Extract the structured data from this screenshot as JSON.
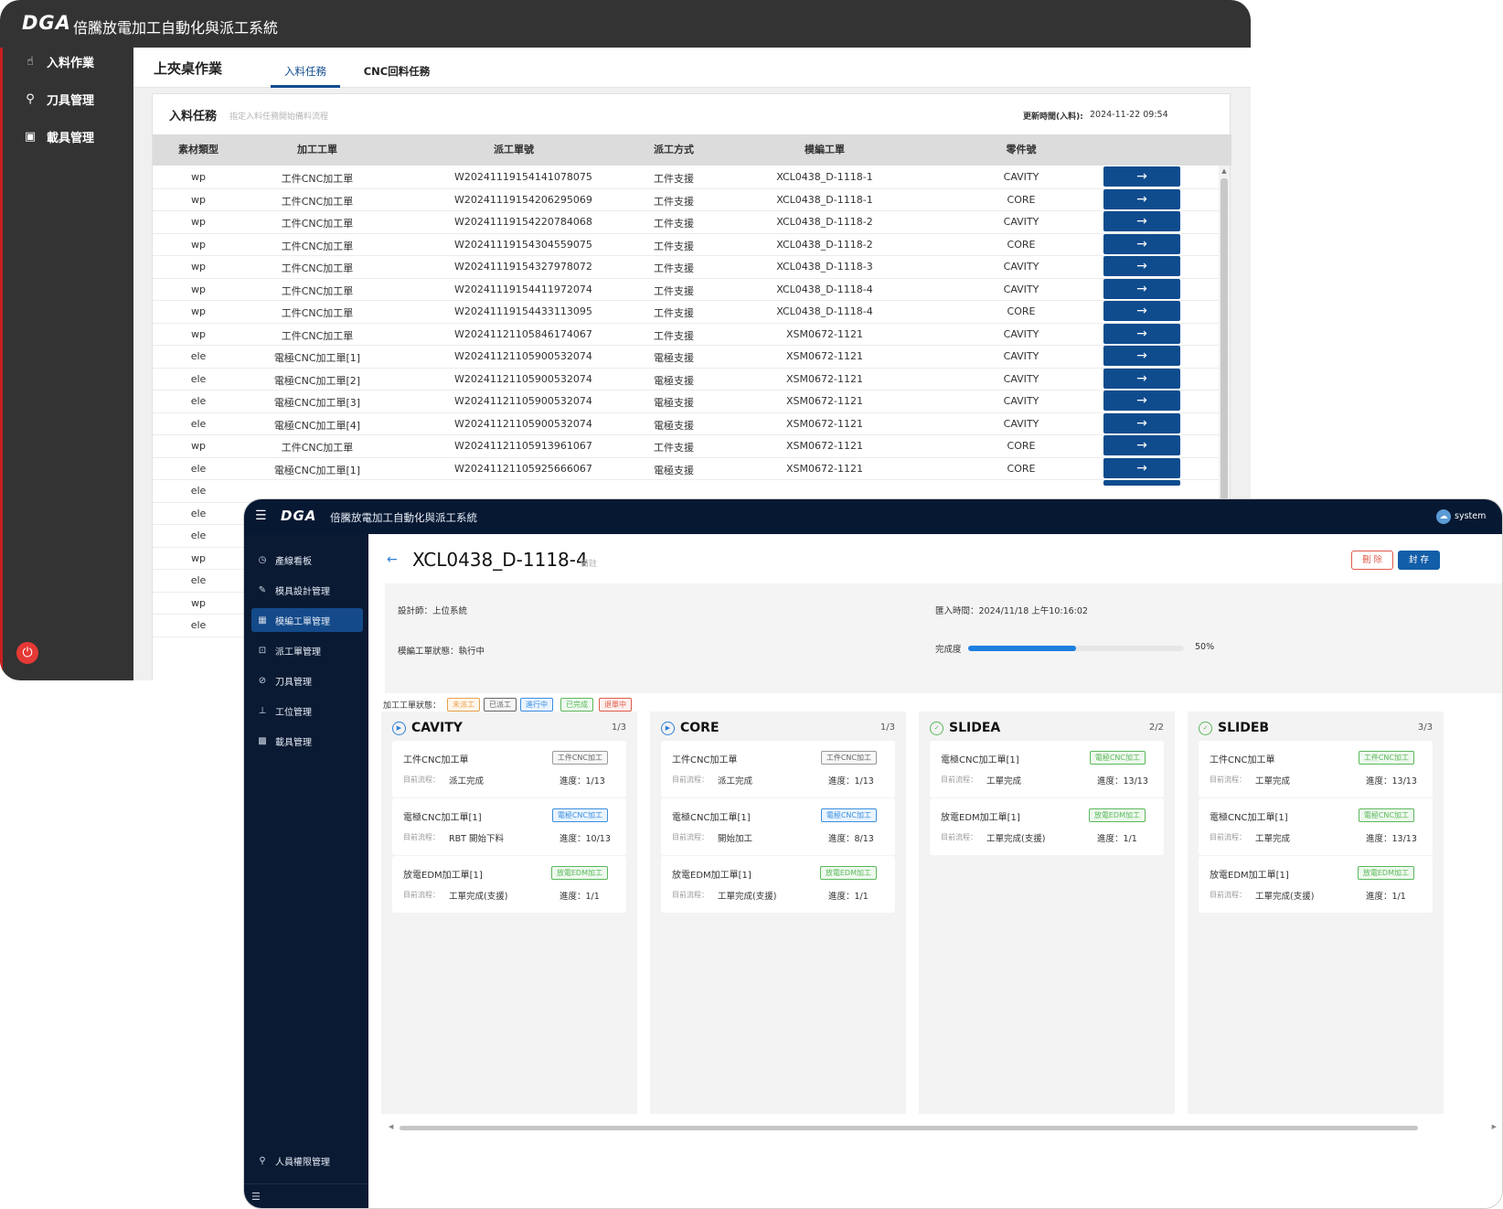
{
  "back": {
    "app_title": "倍騰放電加工自動化與派工系統",
    "logo_text": "DGA",
    "sidebar": [
      {
        "icon": "hand-pointer-icon",
        "glyph": "☝",
        "label": "入料作業"
      },
      {
        "icon": "tool-icon",
        "glyph": "⚲",
        "label": "刀具管理"
      },
      {
        "icon": "fixture-scan-icon",
        "glyph": "▣",
        "label": "載具管理"
      }
    ],
    "page_title": "上夾桌作業",
    "tabs": [
      {
        "label": "入料任務"
      },
      {
        "label": "CNC回料任務"
      }
    ],
    "panel": {
      "title": "入料任務",
      "subtitle": "指定入料任務開始備料流程",
      "update_label": "更新時間(入料):",
      "update_value": "2024-11-22 09:54"
    },
    "columns": [
      "素材類型",
      "加工工單",
      "派工單號",
      "派工方式",
      "模編工單",
      "零件號"
    ],
    "action_glyph": "→",
    "rows": [
      [
        "wp",
        "工件CNC加工單",
        "W20241119154141078075",
        "工件支援",
        "XCL0438_D-1118-1",
        "CAVITY"
      ],
      [
        "wp",
        "工件CNC加工單",
        "W20241119154206295069",
        "工件支援",
        "XCL0438_D-1118-1",
        "CORE"
      ],
      [
        "wp",
        "工件CNC加工單",
        "W20241119154220784068",
        "工件支援",
        "XCL0438_D-1118-2",
        "CAVITY"
      ],
      [
        "wp",
        "工件CNC加工單",
        "W20241119154304559075",
        "工件支援",
        "XCL0438_D-1118-2",
        "CORE"
      ],
      [
        "wp",
        "工件CNC加工單",
        "W20241119154327978072",
        "工件支援",
        "XCL0438_D-1118-3",
        "CAVITY"
      ],
      [
        "wp",
        "工件CNC加工單",
        "W20241119154411972074",
        "工件支援",
        "XCL0438_D-1118-4",
        "CAVITY"
      ],
      [
        "wp",
        "工件CNC加工單",
        "W20241119154433113095",
        "工件支援",
        "XCL0438_D-1118-4",
        "CORE"
      ],
      [
        "wp",
        "工件CNC加工單",
        "W20241121105846174067",
        "工件支援",
        "XSM0672-1121",
        "CAVITY"
      ],
      [
        "ele",
        "電極CNC加工單[1]",
        "W20241121105900532074",
        "電極支援",
        "XSM0672-1121",
        "CAVITY"
      ],
      [
        "ele",
        "電極CNC加工單[2]",
        "W20241121105900532074",
        "電極支援",
        "XSM0672-1121",
        "CAVITY"
      ],
      [
        "ele",
        "電極CNC加工單[3]",
        "W20241121105900532074",
        "電極支援",
        "XSM0672-1121",
        "CAVITY"
      ],
      [
        "ele",
        "電極CNC加工單[4]",
        "W20241121105900532074",
        "電極支援",
        "XSM0672-1121",
        "CAVITY"
      ],
      [
        "wp",
        "工件CNC加工單",
        "W20241121105913961067",
        "工件支援",
        "XSM0672-1121",
        "CORE"
      ],
      [
        "ele",
        "電極CNC加工單[1]",
        "W20241121105925666067",
        "電極支援",
        "XSM0672-1121",
        "CORE"
      ]
    ],
    "hidden_rows_type": [
      "ele",
      "ele",
      "ele",
      "wp",
      "ele",
      "wp",
      "ele"
    ]
  },
  "front": {
    "app_title": "倍騰放電加工自動化與派工系統",
    "logo_text": "DGA",
    "user": "system",
    "sidebar": [
      {
        "icon": "dashboard-icon",
        "glyph": "◷",
        "label": "產線看板"
      },
      {
        "icon": "edit-icon",
        "glyph": "✎",
        "label": "模具設計管理"
      },
      {
        "icon": "table-icon",
        "glyph": "▦",
        "label": "模編工單管理",
        "active": true
      },
      {
        "icon": "dispatch-icon",
        "glyph": "⊡",
        "label": "派工單管理"
      },
      {
        "icon": "tool-icon",
        "glyph": "⊘",
        "label": "刀具管理"
      },
      {
        "icon": "workstation-icon",
        "glyph": "⊥",
        "label": "工位管理"
      },
      {
        "icon": "fixture-icon",
        "glyph": "▩",
        "label": "載具管理"
      }
    ],
    "sidebar_bottom": {
      "icon": "user-icon",
      "glyph": "⚲",
      "label": "人員權限管理"
    },
    "header": {
      "title": "XCL0438_D-1118-4",
      "note": "備註",
      "delete_label": "刪 除",
      "archive_label": "封 存"
    },
    "info": {
      "designer": "設計師：上位系統",
      "import_time": "匯入時間：2024/11/18 上午10:16:02",
      "status": "模編工單狀態：執行中",
      "progress_label": "完成度",
      "progress_text": "50%",
      "progress_value": 0.5
    },
    "legend_label": "加工工單狀態：",
    "legend": [
      {
        "label": "未派工",
        "color": "#e8a04a",
        "bg": "#fff6ea"
      },
      {
        "label": "已派工",
        "color": "#666666",
        "bg": "#f7f7f7"
      },
      {
        "label": "進行中",
        "color": "#3b8fe0",
        "bg": "#eaf4ff"
      },
      {
        "label": "已完成",
        "color": "#5cb85c",
        "bg": "#eef9ee"
      },
      {
        "label": "退單中",
        "color": "#e05a4a",
        "bg": "#fff0ee"
      }
    ],
    "flow_label": "目前流程：",
    "columns": [
      {
        "name": "CAVITY",
        "count": "1/3",
        "state": "running",
        "cards": [
          {
            "name": "工件CNC加工單",
            "tag": "工件CNC加工",
            "tag_state": "assigned",
            "flow": "派工完成",
            "progress": "進度：1/13"
          },
          {
            "name": "電極CNC加工單[1]",
            "tag": "電極CNC加工",
            "tag_state": "running",
            "flow": "RBT 開始下料",
            "progress": "進度：10/13"
          },
          {
            "name": "放電EDM加工單[1]",
            "tag": "放電EDM加工",
            "tag_state": "done",
            "flow": "工單完成(支援)",
            "progress": "進度：1/1"
          }
        ]
      },
      {
        "name": "CORE",
        "count": "1/3",
        "state": "running",
        "cards": [
          {
            "name": "工件CNC加工單",
            "tag": "工件CNC加工",
            "tag_state": "assigned",
            "flow": "派工完成",
            "progress": "進度：1/13"
          },
          {
            "name": "電極CNC加工單[1]",
            "tag": "電極CNC加工",
            "tag_state": "running",
            "flow": "開始加工",
            "progress": "進度：8/13"
          },
          {
            "name": "放電EDM加工單[1]",
            "tag": "放電EDM加工",
            "tag_state": "done",
            "flow": "工單完成(支援)",
            "progress": "進度：1/1"
          }
        ]
      },
      {
        "name": "SLIDEA",
        "count": "2/2",
        "state": "done",
        "cards": [
          {
            "name": "電極CNC加工單[1]",
            "tag": "電極CNC加工",
            "tag_state": "done",
            "flow": "工單完成",
            "progress": "進度：13/13"
          },
          {
            "name": "放電EDM加工單[1]",
            "tag": "放電EDM加工",
            "tag_state": "done",
            "flow": "工單完成(支援)",
            "progress": "進度：1/1"
          }
        ]
      },
      {
        "name": "SLIDEB",
        "count": "3/3",
        "state": "done",
        "cards": [
          {
            "name": "工件CNC加工單",
            "tag": "工件CNC加工",
            "tag_state": "done",
            "flow": "工單完成",
            "progress": "進度：13/13"
          },
          {
            "name": "電極CNC加工單[1]",
            "tag": "電極CNC加工",
            "tag_state": "done",
            "flow": "工單完成",
            "progress": "進度：13/13"
          },
          {
            "name": "放電EDM加工單[1]",
            "tag": "放電EDM加工",
            "tag_state": "done",
            "flow": "工單完成(支援)",
            "progress": "進度：1/1"
          }
        ]
      }
    ]
  },
  "colors": {
    "dark_header": "#333333",
    "navy": "#071832",
    "brand_blue": "#0f4c8e",
    "accent_red": "#e53935"
  }
}
